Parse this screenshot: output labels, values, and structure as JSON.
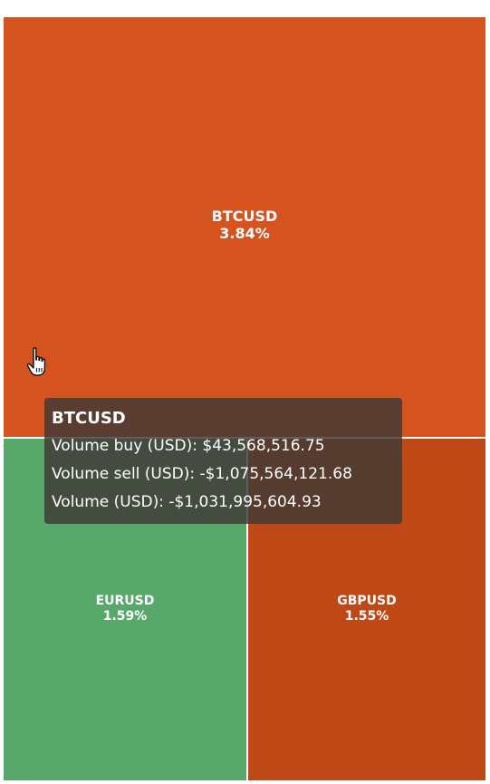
{
  "chart_data": {
    "type": "treemap",
    "tiles": [
      {
        "symbol": "BTCUSD",
        "change": "3.84%",
        "color": "#d4531f"
      },
      {
        "symbol": "EURUSD",
        "change": "1.59%",
        "color": "#58a76b"
      },
      {
        "symbol": "GBPUSD",
        "change": "1.55%",
        "color": "#bf4817"
      }
    ]
  },
  "tooltip": {
    "title": "BTCUSD",
    "rows": [
      {
        "label": "Volume buy (USD):",
        "value": "$43,568,516.75"
      },
      {
        "label": "Volume sell (USD):",
        "value": "-$1,075,564,121.68"
      },
      {
        "label": "Volume (USD):",
        "value": "-$1,031,995,604.93"
      }
    ]
  },
  "cursor": {
    "icon": "pointer-hand-icon"
  }
}
